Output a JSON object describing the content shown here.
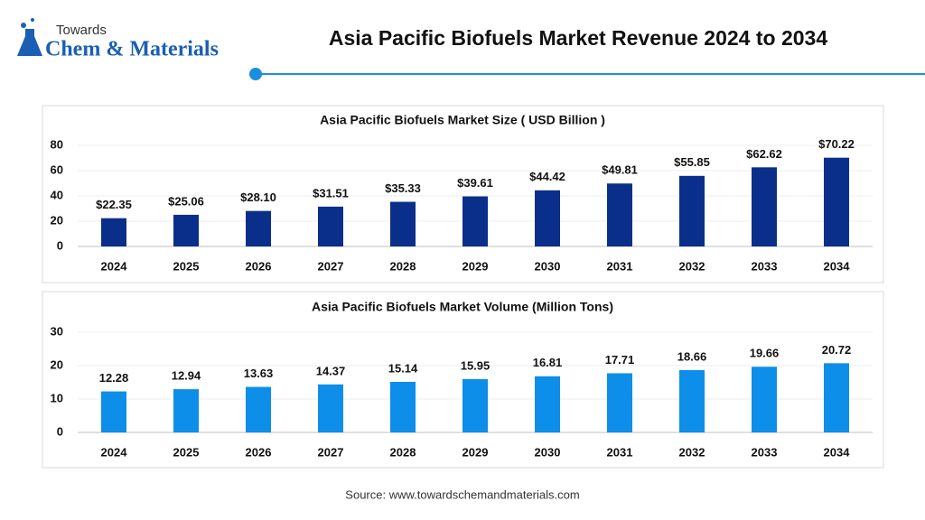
{
  "header": {
    "logo_top": "Towards",
    "logo_main": "Chem & Materials",
    "title": "Asia Pacific Biofuels Market Revenue 2024 to 2034"
  },
  "chart_data": [
    {
      "type": "bar",
      "title": "Asia Pacific Biofuels Market Size ( USD Billion )",
      "categories": [
        "2024",
        "2025",
        "2026",
        "2027",
        "2028",
        "2029",
        "2030",
        "2031",
        "2032",
        "2033",
        "2034"
      ],
      "values": [
        22.35,
        25.06,
        28.1,
        31.51,
        35.33,
        39.61,
        44.42,
        49.81,
        55.85,
        62.62,
        70.22
      ],
      "value_labels": [
        "$22.35",
        "$25.06",
        "$28.10",
        "$31.51",
        "$35.33",
        "$39.61",
        "$44.42",
        "$49.81",
        "$55.85",
        "$62.62",
        "$70.22"
      ],
      "color": "#0a2f8a",
      "ylim": [
        0,
        80
      ],
      "yticks": [
        0,
        20,
        40,
        60,
        80
      ],
      "grid": true
    },
    {
      "type": "bar",
      "title": "Asia Pacific Biofuels Market Volume (Million Tons)",
      "categories": [
        "2024",
        "2025",
        "2026",
        "2027",
        "2028",
        "2029",
        "2030",
        "2031",
        "2032",
        "2033",
        "2034"
      ],
      "values": [
        12.28,
        12.94,
        13.63,
        14.37,
        15.14,
        15.95,
        16.81,
        17.71,
        18.66,
        19.66,
        20.72
      ],
      "color": "#0d8ee8",
      "ylim": [
        0,
        30
      ],
      "yticks": [
        0,
        10,
        20,
        30
      ],
      "grid": true
    }
  ],
  "footer": {
    "source": "Source: www.towardschemandmaterials.com"
  }
}
